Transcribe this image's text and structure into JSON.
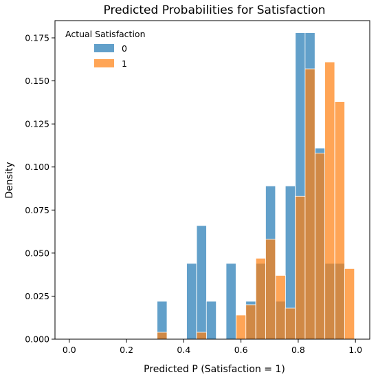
{
  "chart_data": {
    "type": "bar",
    "subtype": "overlapping-histogram",
    "title": "Predicted Probabilities for Satisfaction",
    "xlabel": "Predicted P (Satisfaction = 1)",
    "ylabel": "Density",
    "xlim": [
      -0.05,
      1.05
    ],
    "ylim": [
      0,
      0.185
    ],
    "xticks": [
      0.0,
      0.2,
      0.4,
      0.6,
      0.8,
      1.0
    ],
    "xtick_labels": [
      "0.0",
      "0.2",
      "0.4",
      "0.6",
      "0.8",
      "1.0"
    ],
    "yticks": [
      0.0,
      0.025,
      0.05,
      0.075,
      0.1,
      0.125,
      0.15,
      0.175
    ],
    "ytick_labels": [
      "0.000",
      "0.025",
      "0.050",
      "0.075",
      "0.100",
      "0.125",
      "0.150",
      "0.175"
    ],
    "grid": false,
    "legend": {
      "title": "Actual Satisfaction",
      "placement": "top-left"
    },
    "bin_width": 0.0345,
    "series": [
      {
        "name": "0",
        "color": "#1f77b4",
        "bin_starts": [
          0.307,
          0.41,
          0.445,
          0.479,
          0.548,
          0.617,
          0.652,
          0.686,
          0.721,
          0.755,
          0.79,
          0.824,
          0.859,
          0.893,
          0.928
        ],
        "values": [
          0.022,
          0.044,
          0.066,
          0.022,
          0.044,
          0.022,
          0.044,
          0.089,
          0.022,
          0.089,
          0.178,
          0.178,
          0.111,
          0.044,
          0.044
        ]
      },
      {
        "name": "1",
        "color": "#ff7f0e",
        "bin_starts": [
          0.307,
          0.445,
          0.583,
          0.617,
          0.652,
          0.686,
          0.721,
          0.755,
          0.79,
          0.824,
          0.859,
          0.893,
          0.928,
          0.962
        ],
        "values": [
          0.004,
          0.004,
          0.014,
          0.02,
          0.047,
          0.058,
          0.037,
          0.018,
          0.083,
          0.157,
          0.108,
          0.161,
          0.138,
          0.041
        ]
      }
    ]
  }
}
